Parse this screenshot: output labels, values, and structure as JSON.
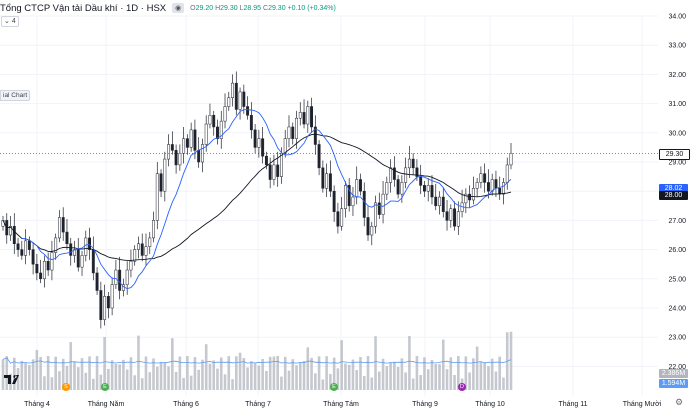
{
  "header": {
    "title": "Tổng CTCP Vận tải Dầu khí · 1D · HSX",
    "eye_icon": "eye-icon",
    "ohlc": {
      "o_label": "O",
      "o": "29.20",
      "h_label": "H",
      "h": "29.30",
      "l_label": "L",
      "l": "28.95",
      "c_label": "C",
      "c": "29.30",
      "change": "+0.10 (+0.34%)"
    },
    "collapse_label": "4",
    "side_pill": "ial Chart"
  },
  "colors": {
    "up": "#089981",
    "down": "#f23645",
    "candle": "#1e222d",
    "ma_short": "#2962ff",
    "ma_long": "#131722",
    "volume": "#b2b5be",
    "volume_ma": "#5b9cf6"
  },
  "price_tags": [
    {
      "value": "29.30",
      "bg": "#ffffff",
      "fg": "#131722"
    },
    {
      "value": "28.02",
      "bg": "#2962ff",
      "fg": "#ffffff"
    },
    {
      "value": "28.00",
      "bg": "#131722",
      "fg": "#ffffff"
    },
    {
      "value": "2.386M",
      "bg": "#b2b5be",
      "fg": "#ffffff"
    },
    {
      "value": "1.594M",
      "bg": "#5b9cf6",
      "fg": "#ffffff"
    }
  ],
  "events": [
    {
      "label": "S",
      "color": "#ff9800"
    },
    {
      "label": "E",
      "color": "#4caf50"
    },
    {
      "label": "E",
      "color": "#4caf50"
    },
    {
      "label": "D",
      "color": "#9c27b0"
    }
  ],
  "chart_data": {
    "type": "candlestick",
    "y_axis": {
      "ticks": [
        "34.00",
        "33.00",
        "32.00",
        "31.00",
        "30.00",
        "29.00",
        "28.00",
        "27.00",
        "26.00",
        "25.00",
        "24.00",
        "23.00",
        "22.00"
      ],
      "range": [
        21.3,
        34.2
      ]
    },
    "x_axis": {
      "ticks": [
        "Tháng 4",
        "Tháng Năm",
        "Tháng 6",
        "Tháng 7",
        "Tháng Tám",
        "Tháng 9",
        "Tháng 10",
        "Tháng 11",
        "Tháng Mười"
      ]
    },
    "last_price": 29.3,
    "close_series": [
      27.0,
      26.5,
      26.8,
      26.2,
      26.0,
      25.8,
      26.3,
      26.0,
      25.5,
      25.2,
      25.0,
      25.6,
      25.3,
      25.9,
      26.4,
      27.1,
      26.6,
      26.2,
      25.8,
      26.0,
      25.4,
      25.8,
      26.4,
      26.0,
      25.2,
      24.6,
      23.6,
      24.4,
      24.0,
      24.8,
      25.3,
      24.6,
      24.8,
      25.3,
      25.6,
      26.0,
      26.2,
      25.8,
      26.1,
      26.4,
      27.0,
      28.6,
      28.0,
      29.1,
      29.6,
      29.4,
      28.9,
      29.3,
      29.8,
      29.5,
      30.1,
      29.4,
      29.0,
      29.6,
      30.3,
      30.6,
      30.2,
      29.8,
      30.4,
      30.9,
      31.2,
      31.7,
      30.8,
      31.4,
      30.9,
      30.6,
      30.1,
      29.5,
      29.8,
      29.2,
      28.9,
      28.4,
      28.9,
      28.5,
      29.3,
      29.8,
      30.2,
      29.8,
      30.5,
      30.7,
      30.3,
      30.9,
      30.2,
      29.6,
      28.8,
      28.1,
      28.6,
      28.0,
      27.3,
      26.8,
      27.4,
      28.2,
      27.5,
      27.8,
      28.4,
      28.0,
      27.1,
      26.5,
      26.8,
      27.6,
      27.2,
      27.9,
      28.3,
      28.8,
      28.4,
      27.9,
      28.3,
      28.8,
      29.1,
      28.8,
      28.5,
      28.2,
      28.0,
      28.2,
      27.8,
      27.5,
      27.8,
      27.3,
      27.0,
      27.4,
      26.8,
      27.3,
      27.6,
      27.9,
      27.7,
      28.1,
      28.3,
      28.6,
      28.3,
      28.0,
      28.4,
      28.1,
      27.9,
      28.3,
      28.9,
      29.3
    ],
    "ma_short_last": 28.02,
    "ma_long_last": 28.0,
    "volume_last": "2.386M",
    "volume_ma_last": "1.594M"
  }
}
